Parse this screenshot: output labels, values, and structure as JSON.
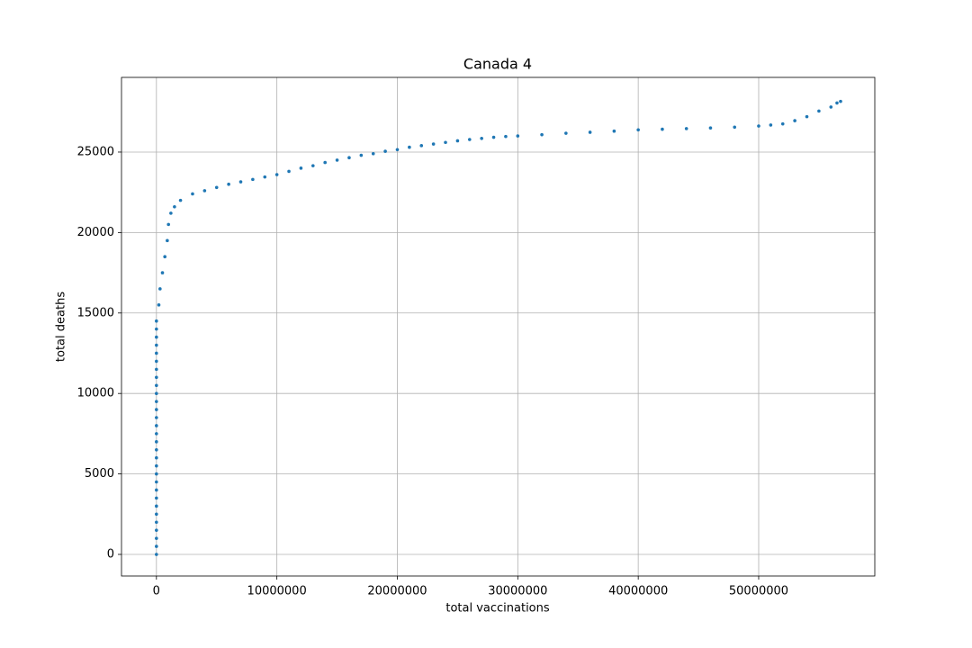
{
  "chart_data": {
    "type": "scatter",
    "title": "Canada 4",
    "x_label": "total vaccinations",
    "y_label": "total deaths",
    "color": "#1f77b4",
    "grid": true,
    "x": [
      0,
      0,
      0,
      0,
      0,
      0,
      0,
      0,
      0,
      0,
      0,
      0,
      0,
      0,
      0,
      0,
      0,
      0,
      0,
      0,
      0,
      0,
      0,
      0,
      0,
      0,
      0,
      0,
      0,
      0,
      200000,
      300000,
      500000,
      700000,
      900000,
      1000000,
      1200000,
      1500000,
      2000000,
      3000000,
      4000000,
      5000000,
      6000000,
      7000000,
      8000000,
      9000000,
      10000000,
      11000000,
      12000000,
      13000000,
      14000000,
      15000000,
      16000000,
      17000000,
      18000000,
      19000000,
      20000000,
      21000000,
      22000000,
      23000000,
      24000000,
      25000000,
      26000000,
      27000000,
      28000000,
      29000000,
      30000000,
      32000000,
      34000000,
      36000000,
      38000000,
      40000000,
      42000000,
      44000000,
      46000000,
      48000000,
      50000000,
      51000000,
      52000000,
      53000000,
      54000000,
      55000000,
      56000000,
      56500000,
      56800000
    ],
    "values": [
      0,
      500,
      1000,
      1500,
      2000,
      2500,
      3000,
      3500,
      4000,
      4500,
      5000,
      5500,
      6000,
      6500,
      7000,
      7500,
      8000,
      8500,
      9000,
      9500,
      10000,
      10500,
      11000,
      11500,
      12000,
      12500,
      13000,
      13500,
      14000,
      14500,
      15500,
      16500,
      17500,
      18500,
      19500,
      20500,
      21200,
      21600,
      22000,
      22400,
      22600,
      22800,
      23000,
      23150,
      23300,
      23450,
      23600,
      23800,
      24000,
      24150,
      24350,
      24500,
      24650,
      24800,
      24900,
      25050,
      25150,
      25300,
      25400,
      25500,
      25600,
      25700,
      25780,
      25850,
      25920,
      25970,
      26000,
      26080,
      26170,
      26230,
      26300,
      26380,
      26420,
      26460,
      26500,
      26550,
      26620,
      26680,
      26750,
      26950,
      27200,
      27550,
      27800,
      28050,
      28150
    ],
    "xlim": [
      -2900000,
      59640000
    ],
    "ylim": [
      -1342,
      29640
    ],
    "xticks": [
      0,
      10000000,
      20000000,
      30000000,
      40000000,
      50000000
    ],
    "yticks": [
      0,
      5000,
      10000,
      15000,
      20000,
      25000
    ]
  }
}
